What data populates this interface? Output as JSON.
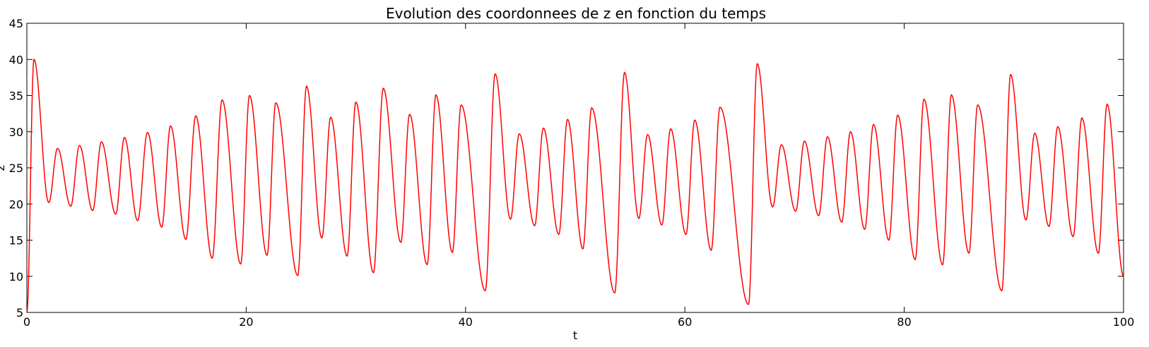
{
  "chart_data": {
    "type": "line",
    "title": "Evolution des coordonnees de z en fonction du temps",
    "xlabel": "t",
    "ylabel": "z",
    "xlim": [
      0,
      100
    ],
    "ylim": [
      5,
      45
    ],
    "xticks": [
      0,
      20,
      40,
      60,
      80,
      100
    ],
    "yticks": [
      5,
      10,
      15,
      20,
      25,
      30,
      35,
      40,
      45
    ],
    "grid": false,
    "legend": "none",
    "series": [
      {
        "color": "#ff0000",
        "extrema": [
          [
            0,
            5.0
          ],
          [
            0.65,
            40.0
          ],
          [
            2.0,
            20.2
          ],
          [
            2.8,
            27.7
          ],
          [
            4.0,
            19.7
          ],
          [
            4.8,
            28.1
          ],
          [
            6.0,
            19.1
          ],
          [
            6.8,
            28.6
          ],
          [
            8.1,
            18.6
          ],
          [
            8.9,
            29.2
          ],
          [
            10.1,
            17.7
          ],
          [
            11.0,
            29.9
          ],
          [
            12.3,
            16.8
          ],
          [
            13.1,
            30.8
          ],
          [
            14.5,
            15.1
          ],
          [
            15.4,
            32.2
          ],
          [
            16.9,
            12.5
          ],
          [
            17.8,
            34.4
          ],
          [
            19.5,
            11.7
          ],
          [
            20.3,
            35.0
          ],
          [
            21.9,
            12.9
          ],
          [
            22.7,
            34.0
          ],
          [
            24.7,
            10.1
          ],
          [
            25.5,
            36.3
          ],
          [
            26.9,
            15.3
          ],
          [
            27.7,
            32.0
          ],
          [
            29.2,
            12.8
          ],
          [
            30.0,
            34.1
          ],
          [
            31.6,
            10.5
          ],
          [
            32.5,
            36.0
          ],
          [
            34.1,
            14.7
          ],
          [
            34.9,
            32.4
          ],
          [
            36.5,
            11.6
          ],
          [
            37.3,
            35.1
          ],
          [
            38.8,
            13.3
          ],
          [
            39.6,
            33.7
          ],
          [
            41.8,
            8.0
          ],
          [
            42.7,
            38.0
          ],
          [
            44.1,
            17.9
          ],
          [
            44.9,
            29.7
          ],
          [
            46.3,
            17.0
          ],
          [
            47.1,
            30.5
          ],
          [
            48.5,
            15.8
          ],
          [
            49.3,
            31.7
          ],
          [
            50.7,
            13.8
          ],
          [
            51.5,
            33.3
          ],
          [
            53.6,
            7.7
          ],
          [
            54.5,
            38.2
          ],
          [
            55.8,
            18.0
          ],
          [
            56.6,
            29.6
          ],
          [
            57.9,
            17.1
          ],
          [
            58.7,
            30.4
          ],
          [
            60.1,
            15.8
          ],
          [
            60.9,
            31.6
          ],
          [
            62.4,
            13.6
          ],
          [
            63.2,
            33.4
          ],
          [
            65.8,
            6.1
          ],
          [
            66.6,
            39.4
          ],
          [
            68.0,
            19.6
          ],
          [
            68.8,
            28.2
          ],
          [
            70.1,
            19.0
          ],
          [
            70.9,
            28.7
          ],
          [
            72.2,
            18.4
          ],
          [
            73.0,
            29.3
          ],
          [
            74.3,
            17.5
          ],
          [
            75.1,
            30.0
          ],
          [
            76.4,
            16.5
          ],
          [
            77.2,
            31.0
          ],
          [
            78.6,
            15.0
          ],
          [
            79.4,
            32.3
          ],
          [
            81.0,
            12.3
          ],
          [
            81.8,
            34.5
          ],
          [
            83.5,
            11.6
          ],
          [
            84.3,
            35.1
          ],
          [
            85.9,
            13.2
          ],
          [
            86.7,
            33.7
          ],
          [
            88.9,
            8.0
          ],
          [
            89.7,
            37.9
          ],
          [
            91.1,
            17.8
          ],
          [
            91.9,
            29.8
          ],
          [
            93.2,
            16.9
          ],
          [
            94.0,
            30.7
          ],
          [
            95.4,
            15.5
          ],
          [
            96.2,
            31.9
          ],
          [
            97.7,
            13.2
          ],
          [
            98.5,
            33.8
          ],
          [
            100.0,
            10.0
          ]
        ]
      }
    ]
  }
}
